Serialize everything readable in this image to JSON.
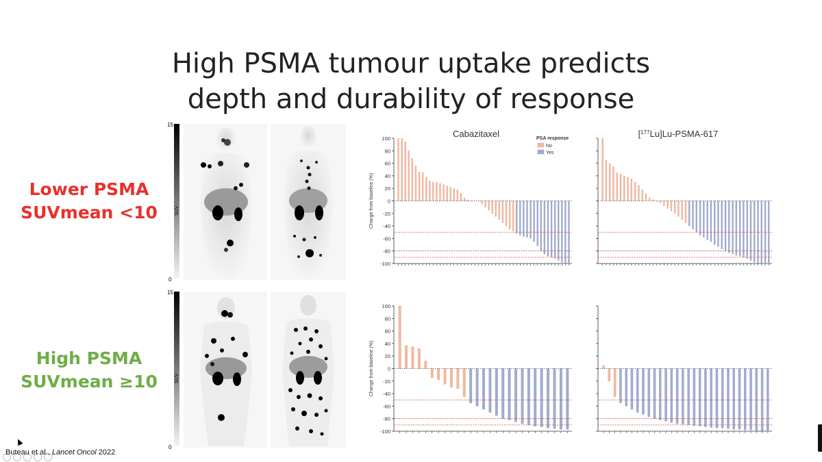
{
  "slide": {
    "title_lines": [
      "High PSMA tumour uptake predicts",
      "depth and durability of response"
    ],
    "lower_label_lines": [
      "Lower PSMA",
      "SUVmean <10"
    ],
    "high_label_lines": [
      "High PSMA",
      "SUVmean ≥10"
    ],
    "citation_author": "Buteau et al., ",
    "citation_journal": "Lancet Oncol",
    "citation_year": " 2022",
    "colors": {
      "lower": "#e8312a",
      "high": "#6fad47",
      "no_response": "#f2b9a0",
      "yes_response": "#a2acd1",
      "reference_line": "#d04a3a"
    }
  },
  "scans": [
    {
      "scale_max": "15",
      "scale_min": "0",
      "scale_label": "SUV"
    },
    {
      "scale_max": "15",
      "scale_min": "0",
      "scale_label": "SUV"
    }
  ],
  "legend": {
    "title": "PSA response",
    "no": "No",
    "yes": "Yes"
  },
  "chart_data": [
    {
      "type": "bar",
      "panel": "lower-cabazitaxel",
      "title": "Cabazitaxel",
      "ylabel": "Change from baseline (%)",
      "ylim": [
        -100,
        100
      ],
      "yticks": [
        "100",
        "80",
        "60",
        "40",
        "20",
        "0",
        "-20",
        "-40",
        "-60",
        "-80",
        "-100"
      ],
      "reference_lines": [
        -50,
        -80,
        -90
      ],
      "values": [
        100,
        100,
        95,
        80,
        68,
        56,
        46,
        45,
        38,
        32,
        30,
        30,
        28,
        26,
        24,
        22,
        20,
        18,
        12,
        5,
        2,
        0,
        0,
        0,
        -5,
        -10,
        -15,
        -20,
        -25,
        -30,
        -35,
        -40,
        -45,
        -48,
        -52,
        -55,
        -57,
        -58,
        -60,
        -65,
        -72,
        -80,
        -85,
        -88,
        -90,
        -92,
        -95,
        -98,
        -100,
        -100
      ],
      "responses": [
        "No",
        "No",
        "No",
        "No",
        "No",
        "No",
        "No",
        "No",
        "No",
        "No",
        "No",
        "No",
        "No",
        "No",
        "No",
        "No",
        "No",
        "No",
        "No",
        "No",
        "No",
        "No",
        "No",
        "No",
        "No",
        "No",
        "No",
        "No",
        "No",
        "No",
        "No",
        "No",
        "No",
        "No",
        "Yes",
        "Yes",
        "Yes",
        "Yes",
        "Yes",
        "Yes",
        "Yes",
        "Yes",
        "Yes",
        "Yes",
        "Yes",
        "Yes",
        "Yes",
        "Yes",
        "Yes",
        "Yes"
      ]
    },
    {
      "type": "bar",
      "panel": "lower-lu-psma",
      "title": "[177Lu]Lu-PSMA-617",
      "ylim": [
        -100,
        100
      ],
      "reference_lines": [
        -50,
        -80,
        -90
      ],
      "values": [
        100,
        65,
        60,
        55,
        45,
        43,
        40,
        38,
        35,
        30,
        25,
        18,
        12,
        5,
        2,
        0,
        -3,
        -8,
        -12,
        -16,
        -20,
        -25,
        -30,
        -35,
        -40,
        -45,
        -50,
        -55,
        -58,
        -62,
        -65,
        -70,
        -73,
        -77,
        -80,
        -83,
        -85,
        -87,
        -88,
        -90,
        -92,
        -95,
        -98,
        -100,
        -100,
        -100,
        -100
      ],
      "responses": [
        "No",
        "No",
        "No",
        "No",
        "No",
        "No",
        "No",
        "No",
        "No",
        "No",
        "No",
        "No",
        "No",
        "No",
        "No",
        "No",
        "No",
        "No",
        "No",
        "No",
        "No",
        "No",
        "No",
        "No",
        "Yes",
        "Yes",
        "Yes",
        "Yes",
        "Yes",
        "Yes",
        "Yes",
        "Yes",
        "Yes",
        "Yes",
        "Yes",
        "Yes",
        "Yes",
        "Yes",
        "Yes",
        "Yes",
        "Yes",
        "Yes",
        "Yes",
        "Yes",
        "Yes",
        "Yes",
        "Yes"
      ]
    },
    {
      "type": "bar",
      "panel": "high-cabazitaxel",
      "ylabel": "Change from baseline (%)",
      "ylim": [
        -100,
        100
      ],
      "yticks": [
        "100",
        "80",
        "60",
        "40",
        "20",
        "0",
        "-20",
        "-40",
        "-60",
        "-80",
        "-100"
      ],
      "reference_lines": [
        -50,
        -80,
        -90
      ],
      "values": [
        100,
        37,
        35,
        32,
        12,
        -15,
        -18,
        -25,
        -30,
        -32,
        -45,
        -55,
        -60,
        -65,
        -70,
        -75,
        -80,
        -82,
        -85,
        -88,
        -90,
        -92,
        -93,
        -95,
        -96,
        -97,
        -97
      ],
      "responses": [
        "No",
        "No",
        "No",
        "No",
        "No",
        "No",
        "No",
        "No",
        "No",
        "No",
        "No",
        "Yes",
        "Yes",
        "Yes",
        "Yes",
        "Yes",
        "Yes",
        "Yes",
        "Yes",
        "Yes",
        "Yes",
        "Yes",
        "Yes",
        "Yes",
        "Yes",
        "Yes",
        "Yes"
      ]
    },
    {
      "type": "bar",
      "panel": "high-lu-psma",
      "ylim": [
        -100,
        100
      ],
      "reference_lines": [
        -50,
        -80,
        -90
      ],
      "values": [
        5,
        -20,
        -45,
        -55,
        -60,
        -65,
        -70,
        -73,
        -77,
        -80,
        -82,
        -84,
        -86,
        -88,
        -89,
        -90,
        -91,
        -92,
        -93,
        -94,
        -95,
        -95,
        -96,
        -97,
        -97,
        -98,
        -98,
        -99,
        -99,
        -100
      ],
      "responses": [
        "No",
        "No",
        "No",
        "Yes",
        "Yes",
        "Yes",
        "Yes",
        "Yes",
        "Yes",
        "Yes",
        "Yes",
        "Yes",
        "Yes",
        "Yes",
        "Yes",
        "Yes",
        "Yes",
        "Yes",
        "Yes",
        "Yes",
        "Yes",
        "Yes",
        "Yes",
        "Yes",
        "Yes",
        "Yes",
        "Yes",
        "Yes",
        "Yes",
        "Yes"
      ]
    }
  ]
}
